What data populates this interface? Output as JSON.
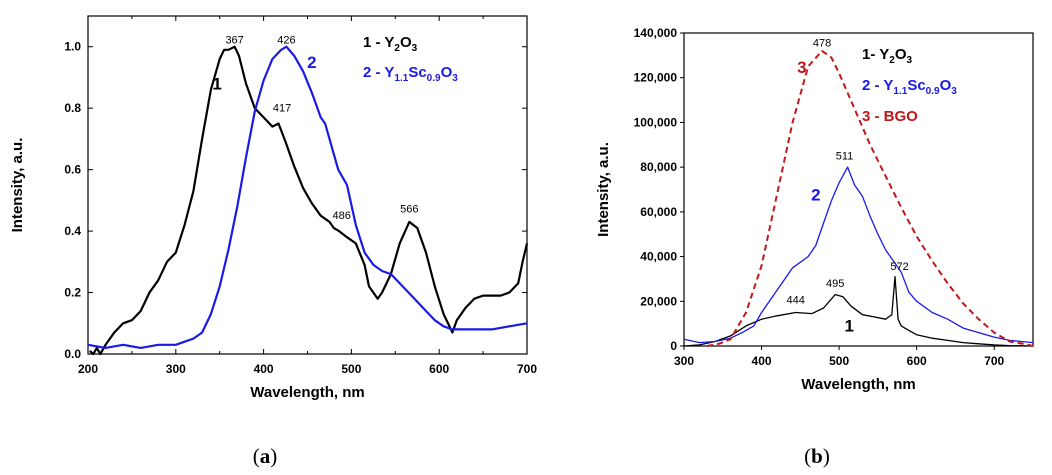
{
  "chart_data": [
    {
      "panel": "(a)",
      "panel_open": "(",
      "panel_letter": "a",
      "panel_close": ")",
      "type": "line",
      "xlabel": "Wavelength, nm",
      "ylabel": "Intensity, a.u.",
      "xlim": [
        200,
        700
      ],
      "ylim": [
        0,
        1.1
      ],
      "xticks": [
        "200",
        "300",
        "400",
        "500",
        "600",
        "700"
      ],
      "yticks": [
        "0.0",
        "0.2",
        "0.4",
        "0.6",
        "0.8",
        "1.0"
      ],
      "legend": [
        {
          "text": "1 - Y",
          "sub1": "2",
          "mid": "O",
          "sub2": "3",
          "color": "#000000"
        },
        {
          "text": "2 - Y",
          "sub1": "1.1",
          "mid": "Sc",
          "sub2": "0.9",
          "tail": "O",
          "sub3": "3",
          "color": "#1a1ae6"
        }
      ],
      "series": [
        {
          "label": "1",
          "color": "#000000",
          "x": [
            202,
            206,
            210,
            214,
            220,
            230,
            240,
            250,
            260,
            270,
            280,
            290,
            300,
            310,
            320,
            330,
            340,
            350,
            355,
            360,
            367,
            372,
            380,
            390,
            400,
            410,
            417,
            425,
            435,
            445,
            455,
            465,
            475,
            480,
            486,
            495,
            505,
            515,
            520,
            530,
            535,
            545,
            555,
            566,
            575,
            585,
            595,
            605,
            615,
            620,
            630,
            640,
            650,
            660,
            670,
            680,
            690,
            695,
            700
          ],
          "y": [
            0.01,
            0.0,
            0.02,
            0.0,
            0.03,
            0.07,
            0.1,
            0.11,
            0.14,
            0.2,
            0.24,
            0.3,
            0.33,
            0.42,
            0.53,
            0.7,
            0.86,
            0.96,
            0.99,
            0.99,
            1.0,
            0.97,
            0.88,
            0.8,
            0.77,
            0.74,
            0.75,
            0.69,
            0.61,
            0.54,
            0.49,
            0.45,
            0.43,
            0.41,
            0.4,
            0.38,
            0.36,
            0.29,
            0.22,
            0.18,
            0.2,
            0.26,
            0.36,
            0.43,
            0.41,
            0.33,
            0.22,
            0.13,
            0.07,
            0.11,
            0.15,
            0.18,
            0.19,
            0.19,
            0.19,
            0.2,
            0.23,
            0.3,
            0.36
          ]
        },
        {
          "label": "2",
          "color": "#1a1ae6",
          "x": [
            200,
            220,
            240,
            260,
            280,
            300,
            310,
            320,
            330,
            340,
            350,
            360,
            370,
            380,
            390,
            400,
            410,
            420,
            426,
            435,
            445,
            455,
            465,
            470,
            475,
            485,
            495,
            505,
            515,
            525,
            535,
            545,
            555,
            565,
            575,
            585,
            595,
            605,
            615,
            625,
            640,
            660,
            680,
            700
          ],
          "y": [
            0.03,
            0.02,
            0.03,
            0.02,
            0.03,
            0.03,
            0.04,
            0.05,
            0.07,
            0.13,
            0.22,
            0.34,
            0.48,
            0.64,
            0.79,
            0.89,
            0.96,
            0.99,
            1.0,
            0.97,
            0.92,
            0.85,
            0.77,
            0.75,
            0.7,
            0.6,
            0.55,
            0.42,
            0.33,
            0.29,
            0.27,
            0.26,
            0.23,
            0.2,
            0.17,
            0.14,
            0.11,
            0.09,
            0.08,
            0.08,
            0.08,
            0.08,
            0.09,
            0.1
          ]
        }
      ],
      "series_labels": [
        {
          "series": 0,
          "text": "1",
          "x": 347,
          "y": 0.86
        },
        {
          "series": 1,
          "text": "2",
          "x": 455,
          "y": 0.93
        }
      ],
      "annotations": [
        {
          "text": "367",
          "x": 367,
          "y": 1.01,
          "color": "#000000"
        },
        {
          "text": "426",
          "x": 426,
          "y": 1.01,
          "color": "#1a1ae6"
        },
        {
          "text": "417",
          "x": 421,
          "y": 0.79,
          "color": "#000000"
        },
        {
          "text": "486",
          "x": 489,
          "y": 0.44,
          "color": "#000000"
        },
        {
          "text": "566",
          "x": 566,
          "y": 0.46,
          "color": "#000000"
        }
      ]
    },
    {
      "panel": "(b)",
      "panel_open": "(",
      "panel_letter": "b",
      "panel_close": ")",
      "type": "line",
      "xlabel": "Wavelength, nm",
      "ylabel": "Intensity, a.u.",
      "xlim": [
        300,
        750
      ],
      "ylim": [
        0,
        140000
      ],
      "xticks": [
        "300",
        "400",
        "500",
        "600",
        "700"
      ],
      "yticks": [
        "0",
        "20,000",
        "40,000",
        "60,000",
        "80,000",
        "100,000",
        "120,000",
        "140,000"
      ],
      "legend": [
        {
          "text": "1- Y",
          "sub1": "2",
          "mid": "O",
          "sub2": "3",
          "color": "#000000"
        },
        {
          "text": "2 - Y",
          "sub1": "1.1",
          "mid": "Sc",
          "sub2": "0.9",
          "tail": "O",
          "sub3": "3",
          "color": "#1a1ae6"
        },
        {
          "text": "3 - BGO",
          "color": "#c0181b"
        }
      ],
      "series": [
        {
          "label": "1",
          "color": "#000000",
          "x": [
            300,
            320,
            340,
            360,
            380,
            400,
            420,
            444,
            465,
            480,
            495,
            505,
            515,
            530,
            545,
            560,
            568,
            572,
            576,
            580,
            590,
            600,
            620,
            640,
            660,
            680,
            700,
            720,
            750
          ],
          "y": [
            0,
            500,
            2000,
            4500,
            9000,
            12000,
            13500,
            15000,
            14500,
            17000,
            23000,
            22000,
            18000,
            14000,
            13000,
            12000,
            14000,
            31000,
            12000,
            9000,
            7000,
            5000,
            3500,
            2500,
            1500,
            1000,
            500,
            200,
            0
          ],
          "width": 1.3
        },
        {
          "label": "2",
          "color": "#1a1ae6",
          "x": [
            300,
            320,
            340,
            360,
            375,
            390,
            400,
            420,
            440,
            460,
            470,
            480,
            490,
            500,
            511,
            520,
            530,
            540,
            550,
            560,
            570,
            580,
            590,
            600,
            620,
            640,
            660,
            680,
            700,
            720,
            750
          ],
          "y": [
            3000,
            1500,
            2000,
            3500,
            6000,
            9000,
            15000,
            25000,
            35000,
            40000,
            45000,
            55000,
            65000,
            73000,
            80000,
            72000,
            67000,
            58000,
            50000,
            43000,
            38000,
            33000,
            24000,
            20000,
            15000,
            12000,
            8000,
            6000,
            4000,
            2500,
            1500
          ],
          "width": 1.3
        },
        {
          "label": "3",
          "color": "#c0181b",
          "dashed": true,
          "x": [
            330,
            345,
            360,
            380,
            400,
            420,
            440,
            460,
            478,
            490,
            500,
            520,
            540,
            560,
            580,
            600,
            620,
            640,
            660,
            680,
            700,
            720,
            740,
            750
          ],
          "y": [
            0,
            1000,
            3000,
            15000,
            36000,
            68000,
            100000,
            125000,
            132000,
            129000,
            122000,
            106000,
            90000,
            76000,
            62000,
            49000,
            38000,
            28000,
            19000,
            12000,
            6000,
            2000,
            800,
            0
          ],
          "width": 2.0
        }
      ],
      "series_labels": [
        {
          "series": 2,
          "text": "3",
          "x": 452,
          "y": 122000
        },
        {
          "series": 1,
          "text": "2",
          "x": 470,
          "y": 65000
        },
        {
          "series": 0,
          "text": "1",
          "x": 513,
          "y": 6500
        }
      ],
      "annotations": [
        {
          "text": "478",
          "x": 478,
          "y": 134000,
          "color": "#c0181b"
        },
        {
          "text": "511",
          "x": 507,
          "y": 83500,
          "color": "#000000"
        },
        {
          "text": "444",
          "x": 444,
          "y": 19000,
          "color": "#000000"
        },
        {
          "text": "495",
          "x": 495,
          "y": 26500,
          "color": "#000000"
        },
        {
          "text": "572",
          "x": 578,
          "y": 34000,
          "color": "#000000"
        }
      ]
    }
  ]
}
